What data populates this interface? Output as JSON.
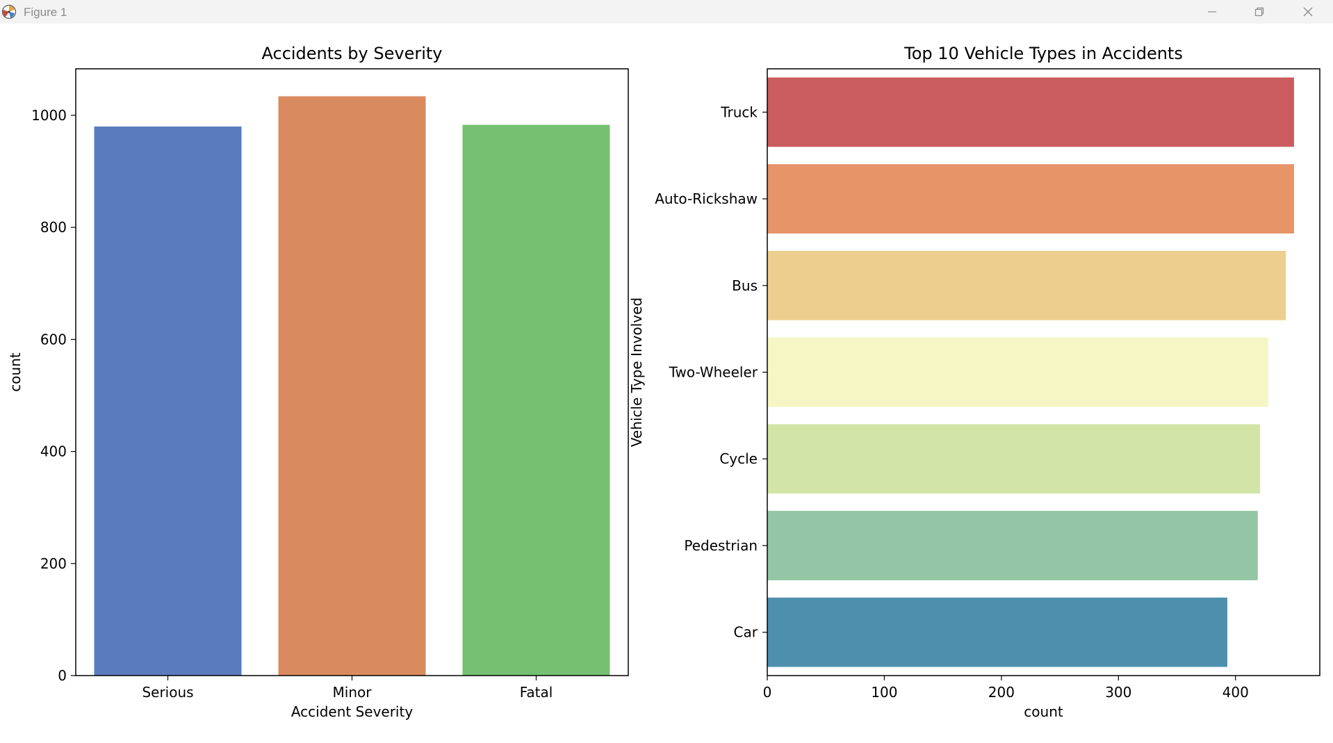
{
  "window": {
    "title": "Figure 1",
    "icon": "matplotlib-icon",
    "controls": [
      "minimize-icon",
      "restore-icon",
      "close-icon"
    ]
  },
  "chart_data": [
    {
      "type": "bar",
      "title": "Accidents by Severity",
      "xlabel": "Accident Severity",
      "ylabel": "count",
      "categories": [
        "Serious",
        "Minor",
        "Fatal"
      ],
      "values": [
        980,
        1034,
        983
      ],
      "colors": [
        "#5b7bbf",
        "#d98a5e",
        "#76c071"
      ],
      "ylim": [
        0,
        1083
      ],
      "yticks": [
        0,
        200,
        400,
        600,
        800,
        1000
      ],
      "grid": false,
      "legend": false
    },
    {
      "type": "bar",
      "orientation": "horizontal",
      "title": "Top 10 Vehicle Types in Accidents",
      "xlabel": "count",
      "ylabel": "Vehicle Type Involved",
      "categories": [
        "Truck",
        "Auto-Rickshaw",
        "Bus",
        "Two-Wheeler",
        "Cycle",
        "Pedestrian",
        "Car"
      ],
      "values": [
        450,
        450,
        443,
        428,
        421,
        419,
        393
      ],
      "colors": [
        "#cb5c5e",
        "#e69468",
        "#eece8f",
        "#f6f6c4",
        "#d3e5a6",
        "#92c6a4",
        "#4e8fad"
      ],
      "xlim": [
        0,
        472
      ],
      "xticks": [
        0,
        100,
        200,
        300,
        400
      ],
      "grid": false,
      "legend": false
    }
  ]
}
